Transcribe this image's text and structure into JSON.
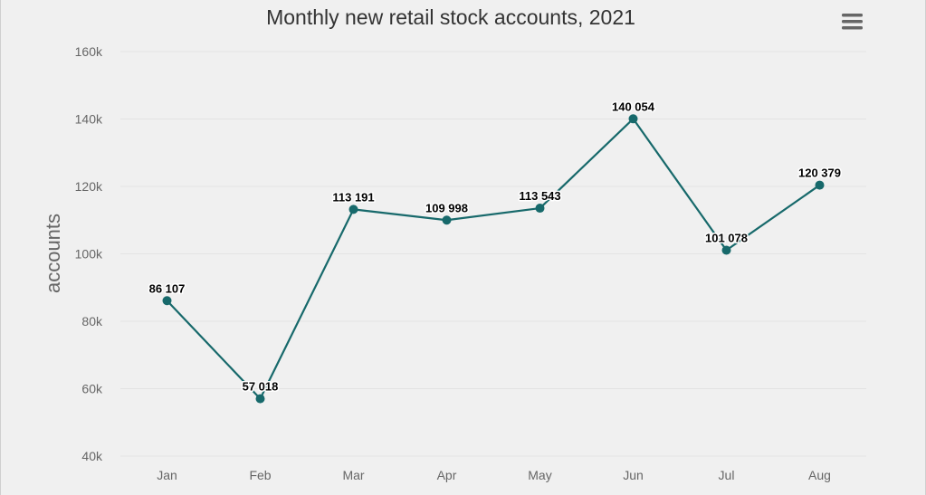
{
  "chart_data": {
    "type": "line",
    "title": "Monthly new retail stock accounts, 2021",
    "xlabel": "",
    "ylabel": "accounts",
    "categories": [
      "Jan",
      "Feb",
      "Mar",
      "Apr",
      "May",
      "Jun",
      "Jul",
      "Aug"
    ],
    "series": [
      {
        "values": [
          86107,
          57018,
          113191,
          109998,
          113543,
          140054,
          101078,
          120379
        ],
        "data_labels": [
          "86 107",
          "57 018",
          "113 191",
          "109 998",
          "113 543",
          "140 054",
          "101 078",
          "120 379"
        ],
        "color": "#17696b"
      }
    ],
    "ylim": [
      40000,
      160000
    ],
    "yticks": [
      40000,
      60000,
      80000,
      100000,
      120000,
      140000,
      160000
    ],
    "ytick_labels": [
      "40k",
      "60k",
      "80k",
      "100k",
      "120k",
      "140k",
      "160k"
    ],
    "grid": true,
    "legend": "none"
  },
  "menu": {
    "icon": "hamburger-menu-icon",
    "color": "#666666"
  },
  "colors": {
    "background": "#f0f0f0",
    "line": "#17696b",
    "grid": "#e3e3e3"
  }
}
